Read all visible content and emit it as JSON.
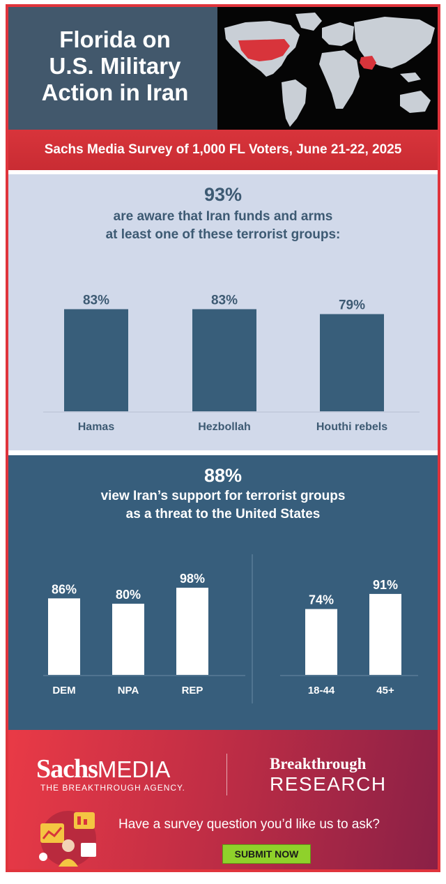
{
  "header": {
    "title_lines": [
      "Florida on",
      "U.S. Military",
      "Action in Iran"
    ]
  },
  "subtitle": "Sachs Media Survey of 1,000 FL Voters, June 21-22, 2025",
  "section1": {
    "headline_pct": "93%",
    "headline_line1": "are aware that Iran funds and arms",
    "headline_line2": "at least one of these terrorist groups:"
  },
  "section2": {
    "headline_pct": "88%",
    "headline_line1": "view Iran’s support for terrorist groups",
    "headline_line2": "as a threat to the United States"
  },
  "chart_data": [
    {
      "type": "bar",
      "categories": [
        "Hamas",
        "Hezbollah",
        "Houthi rebels"
      ],
      "values": [
        83,
        83,
        79
      ],
      "value_labels": [
        "83%",
        "83%",
        "79%"
      ],
      "bar_color": "#385e7a"
    },
    {
      "type": "bar",
      "categories": [
        "DEM",
        "NPA",
        "REP"
      ],
      "values": [
        86,
        80,
        98
      ],
      "value_labels": [
        "86%",
        "80%",
        "98%"
      ],
      "bar_color": "#ffffff"
    },
    {
      "type": "bar",
      "categories": [
        "18-44",
        "45+"
      ],
      "values": [
        74,
        91
      ],
      "value_labels": [
        "74%",
        "91%"
      ],
      "bar_color": "#ffffff"
    }
  ],
  "footer": {
    "brand1_part1": "Sachs",
    "brand1_part2": "MEDIA",
    "brand1_tagline": "THE BREAKTHROUGH AGENCY.",
    "brand2_line1": "Breakthrough",
    "brand2_line2": "RESEARCH",
    "question": "Have a survey question you’d like us to ask?",
    "submit_label": "SUBMIT NOW"
  },
  "colors": {
    "accent_red": "#d8343b",
    "header_slate": "#42586c",
    "panel_light": "#d1d9ea",
    "panel_dark": "#375e7c",
    "button_green": "#8fd12b"
  }
}
